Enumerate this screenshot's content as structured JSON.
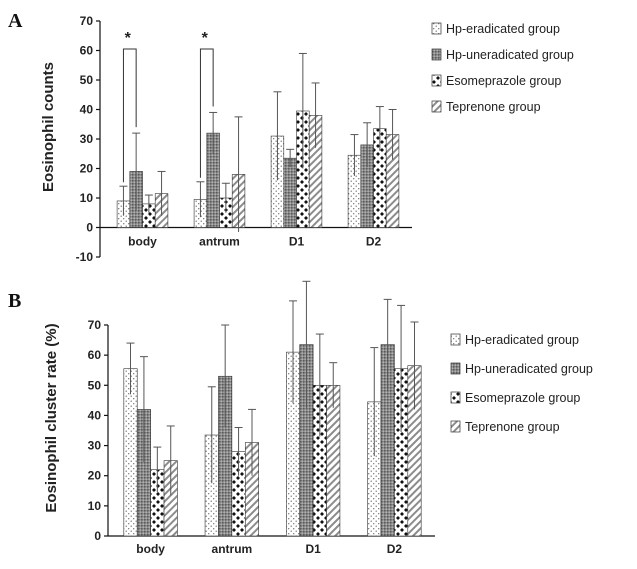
{
  "panels": [
    {
      "letter": "A",
      "ylabel": "Eosinophil counts",
      "legend": [
        "Hp-eradicated group",
        "Hp-uneradicated group",
        "Esomeprazole group",
        "Teprenone group"
      ],
      "star": "*"
    },
    {
      "letter": "B",
      "ylabel": "Eosinophil cluster rate (%)",
      "legend": [
        "Hp-eradicated group",
        "Hp-uneradicated group",
        "Esomeprazole group",
        "Teprenone group"
      ],
      "star": ""
    }
  ],
  "chart_data": [
    {
      "type": "bar",
      "categories": [
        "body",
        "antrum",
        "D1",
        "D2"
      ],
      "ylabel": "Eosinophil counts",
      "ylim": [
        -10,
        70
      ],
      "yticks": [
        -10,
        0,
        10,
        20,
        30,
        40,
        50,
        60,
        70
      ],
      "legend_position": "right",
      "series": [
        {
          "name": "Hp-eradicated group",
          "pattern": "dots",
          "values": [
            9,
            9.5,
            31,
            24.5
          ],
          "errors": [
            5,
            6,
            15,
            7
          ]
        },
        {
          "name": "Hp-uneradicated group",
          "pattern": "dense",
          "values": [
            19,
            32,
            23.5,
            28
          ],
          "errors": [
            13,
            7,
            3,
            7.5
          ]
        },
        {
          "name": "Esomeprazole group",
          "pattern": "checker",
          "values": [
            8,
            10,
            39.5,
            33.5
          ],
          "errors": [
            3,
            5,
            19.5,
            7.5
          ]
        },
        {
          "name": "Teprenone group",
          "pattern": "hatch",
          "values": [
            11.5,
            18,
            38,
            31.5
          ],
          "errors": [
            7.5,
            19.5,
            11,
            8.5
          ]
        }
      ],
      "annotations": [
        {
          "text": "*",
          "category": "body",
          "from_series": 0,
          "to_series": 1
        },
        {
          "text": "*",
          "category": "antrum",
          "from_series": 0,
          "to_series": 1
        }
      ]
    },
    {
      "type": "bar",
      "categories": [
        "body",
        "antrum",
        "D1",
        "D2"
      ],
      "ylabel": "Eosinophil cluster rate (%)",
      "ylim": [
        0,
        70
      ],
      "yticks": [
        0,
        10,
        20,
        30,
        40,
        50,
        60,
        70
      ],
      "legend_position": "right",
      "series": [
        {
          "name": "Hp-eradicated group",
          "pattern": "dots",
          "values": [
            55.5,
            33.5,
            61,
            44.5
          ],
          "errors": [
            8.5,
            16,
            17,
            18
          ]
        },
        {
          "name": "Hp-uneradicated group",
          "pattern": "dense",
          "values": [
            42,
            53,
            63.5,
            63.5
          ],
          "errors": [
            17.5,
            17,
            21,
            15
          ]
        },
        {
          "name": "Esomeprazole group",
          "pattern": "checker",
          "values": [
            22,
            28,
            50,
            55.5
          ],
          "errors": [
            7.5,
            8,
            17,
            21
          ]
        },
        {
          "name": "Teprenone group",
          "pattern": "hatch",
          "values": [
            25,
            31,
            50,
            56.5
          ],
          "errors": [
            11.5,
            11,
            7.5,
            14.5
          ]
        }
      ],
      "annotations": []
    }
  ]
}
